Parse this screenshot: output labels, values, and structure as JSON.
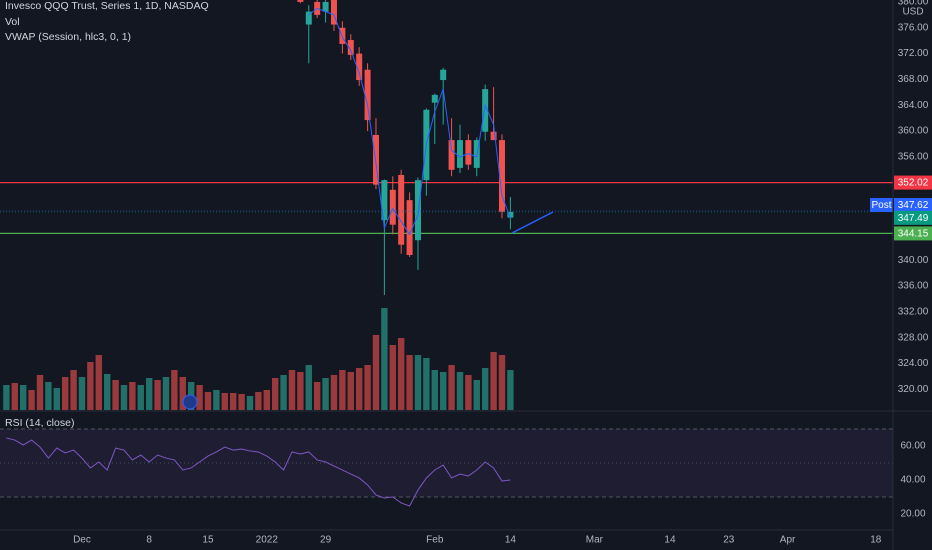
{
  "chart_data": {
    "type": "candlestick",
    "title": "Invesco QQQ Trust, Series 1, 1D, NASDAQ",
    "currency": "USD",
    "up_color": "#26a69a",
    "down_color": "#ef5350",
    "x": [
      26,
      27,
      28,
      29,
      30,
      31,
      32,
      33,
      34,
      35,
      36,
      37,
      38,
      39,
      40,
      41,
      42,
      43,
      44,
      45,
      46,
      47,
      48,
      49,
      50,
      51
    ],
    "open": [
      381.5,
      376.5,
      380.0,
      378.5,
      380.5,
      376.0,
      374.1,
      372.0,
      369.5,
      359.4,
      346.2,
      350.9,
      353.2,
      349.3,
      343.1,
      352.4,
      364.4,
      367.9,
      358.6,
      354.3,
      358.6,
      354.3,
      359.9,
      359.9,
      358.6,
      346.6
    ],
    "high": [
      382.5,
      379.5,
      381.0,
      380.8,
      381.0,
      377.0,
      375.0,
      373.0,
      370.5,
      362.0,
      352.5,
      353.0,
      354.0,
      350.5,
      352.8,
      363.5,
      365.8,
      369.8,
      362.0,
      361.0,
      359.5,
      359.0,
      367.2,
      366.8,
      359.5,
      349.8
    ],
    "low": [
      379.8,
      370.5,
      377.5,
      376.8,
      375.5,
      372.0,
      371.0,
      367.0,
      360.0,
      351.0,
      334.6,
      344.0,
      341.0,
      340.5,
      338.5,
      350.0,
      358.0,
      361.0,
      353.0,
      353.5,
      354.0,
      353.0,
      358.5,
      358.7,
      346.5,
      344.8
    ],
    "close": [
      380.0,
      378.5,
      378.0,
      380.0,
      376.5,
      373.5,
      371.8,
      367.9,
      361.7,
      351.7,
      352.4,
      345.5,
      342.4,
      340.8,
      352.4,
      363.3,
      365.6,
      369.5,
      354.0,
      358.6,
      354.8,
      358.6,
      366.5,
      358.6,
      347.5,
      347.49
    ],
    "xlim": [
      -9.76,
      96.55
    ],
    "xticks": [
      {
        "value": 0,
        "label": "Dec"
      },
      8,
      15,
      {
        "value": 22,
        "label": "2022"
      },
      29,
      {
        "value": 42,
        "label": "Feb"
      },
      {
        "value": 51,
        "label": "14"
      },
      {
        "value": 61,
        "label": "Mar"
      },
      {
        "value": 70,
        "label": "14"
      },
      {
        "value": 77,
        "label": "23"
      },
      {
        "value": 84,
        "label": "Apr"
      },
      {
        "value": 94.5,
        "label": "18"
      }
    ],
    "ylim": [
      316.8,
      380.3
    ],
    "yticks": [
      {
        "value": 380,
        "label": "380.00"
      },
      {
        "value": 376,
        "label": "376.00"
      },
      {
        "value": 372,
        "label": "372.00"
      },
      {
        "value": 368,
        "label": "368.00"
      },
      {
        "value": 364,
        "label": "364.00"
      },
      {
        "value": 360,
        "label": "360.00"
      },
      {
        "value": 356,
        "label": "356.00"
      },
      {
        "value": 340,
        "label": "340.00"
      },
      {
        "value": 336,
        "label": "336.00"
      },
      {
        "value": 332,
        "label": "332.00"
      },
      {
        "value": 328,
        "label": "328.00"
      },
      {
        "value": 324,
        "label": "324.00"
      },
      {
        "value": 320,
        "label": "320.00"
      }
    ],
    "vwap": {
      "name": "VWAP (Session, hlc3, 0, 1)",
      "color": "#2962ff",
      "x": [
        27,
        28,
        29,
        30,
        31,
        32,
        33,
        34,
        35,
        36,
        37,
        38,
        39,
        40,
        41,
        42,
        43,
        44,
        45,
        46,
        47,
        48,
        49,
        50,
        51
      ],
      "values": [
        378,
        379,
        378.5,
        378,
        374.5,
        372.5,
        369,
        364,
        355,
        345,
        348,
        346,
        344,
        347,
        358,
        363,
        366.5,
        357,
        356,
        356.5,
        356,
        364,
        361,
        350,
        346.5
      ]
    },
    "volume": {
      "name": "Vol",
      "ylim": [
        0,
        130
      ],
      "x": [
        -9,
        -8,
        -7,
        -6,
        -5,
        -4,
        -3,
        -2,
        -1,
        0,
        1,
        2,
        3,
        4,
        5,
        6,
        7,
        8,
        9,
        10,
        11,
        12,
        13,
        14,
        15,
        16,
        17,
        18,
        19,
        20,
        21,
        22,
        23,
        24,
        25,
        26,
        27,
        28,
        29,
        30,
        31,
        32,
        33,
        34,
        35,
        36,
        37,
        38,
        39,
        40,
        41,
        42,
        43,
        44,
        45,
        46,
        47,
        48,
        49,
        50,
        51
      ],
      "values": [
        25,
        27,
        25,
        20,
        35,
        28,
        22,
        33,
        40,
        33,
        48,
        55,
        36,
        30,
        25,
        28,
        25,
        32,
        30,
        33,
        40,
        33,
        28,
        25,
        18,
        20,
        17,
        17,
        16,
        14,
        18,
        20,
        32,
        35,
        40,
        38,
        45,
        28,
        32,
        35,
        40,
        38,
        42,
        45,
        75,
        102,
        65,
        72,
        55,
        55,
        52,
        40,
        38,
        45,
        38,
        35,
        30,
        42,
        58,
        55,
        40
      ],
      "colors": [
        "#22706a",
        "#9b3a3d",
        "#22706a",
        "#9b3a3d",
        "#9b3a3d",
        "#22706a",
        "#22706a",
        "#9b3a3d",
        "#9b3a3d",
        "#22706a",
        "#9b3a3d",
        "#9b3a3d",
        "#22706a",
        "#9b3a3d",
        "#22706a",
        "#9b3a3d",
        "#22706a",
        "#22706a",
        "#9b3a3d",
        "#22706a",
        "#9b3a3d",
        "#9b3a3d",
        "#22706a",
        "#9b3a3d",
        "#9b3a3d",
        "#22706a",
        "#9b3a3d",
        "#9b3a3d",
        "#9b3a3d",
        "#22706a",
        "#9b3a3d",
        "#9b3a3d",
        "#9b3a3d",
        "#22706a",
        "#9b3a3d",
        "#9b3a3d",
        "#22706a",
        "#9b3a3d",
        "#22706a",
        "#9b3a3d",
        "#9b3a3d",
        "#9b3a3d",
        "#9b3a3d",
        "#9b3a3d",
        "#9b3a3d",
        "#22706a",
        "#9b3a3d",
        "#9b3a3d",
        "#9b3a3d",
        "#22706a",
        "#22706a",
        "#22706a",
        "#22706a",
        "#9b3a3d",
        "#22706a",
        "#9b3a3d",
        "#22706a",
        "#22706a",
        "#9b3a3d",
        "#9b3a3d",
        "#22706a"
      ]
    },
    "rsi": {
      "name": "RSI (14, close)",
      "color": "#7e57c2",
      "ylim": [
        10.6,
        80
      ],
      "bands": [
        30,
        70
      ],
      "midline": 50,
      "yticks": [
        {
          "value": 60,
          "label": "60.00"
        },
        {
          "value": 40,
          "label": "40.00"
        },
        {
          "value": 20,
          "label": "20.00"
        }
      ],
      "x": [
        -9,
        -8,
        -7,
        -6,
        -5,
        -4,
        -3,
        -2,
        -1,
        0,
        1,
        2,
        3,
        4,
        5,
        6,
        7,
        8,
        9,
        10,
        11,
        12,
        13,
        14,
        15,
        16,
        17,
        18,
        19,
        20,
        21,
        22,
        23,
        24,
        25,
        26,
        27,
        28,
        29,
        30,
        31,
        32,
        33,
        34,
        35,
        36,
        37,
        38,
        39,
        40,
        41,
        42,
        43,
        44,
        45,
        46,
        47,
        48,
        49,
        50,
        51
      ],
      "values": [
        64.7,
        63.5,
        60.6,
        63.5,
        59.4,
        52.9,
        58.8,
        55.9,
        57.6,
        52.9,
        47.1,
        50.6,
        45.9,
        58.8,
        57.6,
        51.8,
        54.7,
        50.6,
        54.7,
        52.9,
        51.8,
        45.9,
        47.1,
        50.6,
        54.1,
        56.5,
        59.4,
        57.6,
        58.2,
        57.1,
        56.5,
        54.1,
        50.6,
        45.9,
        56.5,
        55.3,
        56.5,
        51.8,
        50.6,
        48.2,
        45.9,
        43.5,
        41.2,
        37.1,
        31.2,
        29.4,
        30.0,
        26.5,
        24.7,
        34.1,
        41.2,
        45.9,
        48.8,
        41.2,
        43.5,
        42.4,
        45.9,
        50.6,
        47.1,
        39.4,
        40.0
      ]
    },
    "levels": [
      {
        "value": 352.02,
        "label": "352.02",
        "color": "#f23645"
      },
      {
        "value": 344.15,
        "label": "344.15",
        "color": "#4caf50"
      }
    ],
    "price_labels": [
      {
        "value": 347.62,
        "label": "347.62",
        "tag": "Post",
        "color": "#2962ff"
      },
      {
        "value": 347.49,
        "label": "347.49",
        "color": "#089981"
      }
    ]
  }
}
